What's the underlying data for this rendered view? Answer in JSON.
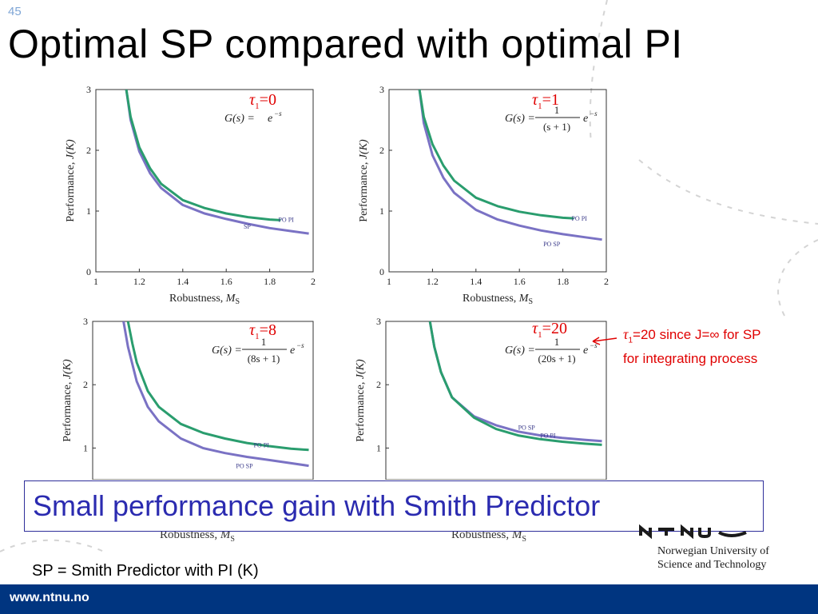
{
  "slide": {
    "number": "45",
    "title": "Optimal SP compared with optimal PI"
  },
  "colors": {
    "pi": "#2a9d6e",
    "sp": "#7a72c4",
    "accent_red": "#e00000",
    "callout_text": "#2b2bb0",
    "footer_bar": "#003580"
  },
  "chart_data": [
    {
      "type": "line",
      "tau_label": {
        "symbol": "τ",
        "sub": "1",
        "value": "=0"
      },
      "plant": {
        "lhs": "G(s) = ",
        "num": "",
        "den": "",
        "exp": "e",
        "exp_sup": "−s"
      },
      "xlabel": "Robustness, ",
      "xlabel_var": "M",
      "xlabel_sub": "S",
      "ylabel": "Performance, ",
      "ylabel_var": "J(K)",
      "xlim": [
        1,
        2
      ],
      "ylim": [
        0,
        3
      ],
      "xticks": [
        "1",
        "1.2",
        "1.4",
        "1.6",
        "1.8",
        "2"
      ],
      "yticks": [
        "0",
        "1",
        "2",
        "3"
      ],
      "series": [
        {
          "name": "PI",
          "x": [
            1.14,
            1.16,
            1.2,
            1.25,
            1.3,
            1.4,
            1.5,
            1.6,
            1.7,
            1.8,
            1.85
          ],
          "y": [
            3.0,
            2.55,
            2.05,
            1.7,
            1.45,
            1.18,
            1.05,
            0.96,
            0.9,
            0.86,
            0.85
          ]
        },
        {
          "name": "SP",
          "x": [
            1.14,
            1.16,
            1.2,
            1.25,
            1.3,
            1.4,
            1.5,
            1.6,
            1.7,
            1.8,
            1.9,
            1.98
          ],
          "y": [
            3.0,
            2.5,
            1.98,
            1.62,
            1.38,
            1.1,
            0.96,
            0.87,
            0.79,
            0.72,
            0.67,
            0.63
          ]
        }
      ],
      "annotations": [
        {
          "text": "PO PI",
          "x": 1.84,
          "y": 0.86
        },
        {
          "text": "SP",
          "x": 1.68,
          "y": 0.75
        }
      ]
    },
    {
      "type": "line",
      "tau_label": {
        "symbol": "τ",
        "sub": "1",
        "value": "=1"
      },
      "plant": {
        "lhs": "G(s) = ",
        "num": "1",
        "den": "(s + 1)",
        "exp": "e",
        "exp_sup": "−s"
      },
      "xlabel": "Robustness, ",
      "xlabel_var": "M",
      "xlabel_sub": "S",
      "ylabel": "Performance, ",
      "ylabel_var": "J(K)",
      "xlim": [
        1,
        2
      ],
      "ylim": [
        0,
        3
      ],
      "xticks": [
        "1",
        "1.2",
        "1.4",
        "1.6",
        "1.8",
        "2"
      ],
      "yticks": [
        "0",
        "1",
        "2",
        "3"
      ],
      "series": [
        {
          "name": "PI",
          "x": [
            1.14,
            1.16,
            1.2,
            1.25,
            1.3,
            1.4,
            1.5,
            1.6,
            1.7,
            1.8,
            1.85
          ],
          "y": [
            3.0,
            2.55,
            2.1,
            1.75,
            1.5,
            1.22,
            1.08,
            0.99,
            0.93,
            0.89,
            0.88
          ]
        },
        {
          "name": "SP",
          "x": [
            1.14,
            1.16,
            1.2,
            1.25,
            1.3,
            1.4,
            1.5,
            1.6,
            1.7,
            1.8,
            1.9,
            1.98
          ],
          "y": [
            3.0,
            2.45,
            1.92,
            1.55,
            1.3,
            1.02,
            0.86,
            0.76,
            0.68,
            0.62,
            0.57,
            0.53
          ]
        }
      ],
      "annotations": [
        {
          "text": "PO PI",
          "x": 1.84,
          "y": 0.88
        },
        {
          "text": "PO SP",
          "x": 1.71,
          "y": 0.46
        }
      ]
    },
    {
      "type": "line",
      "tau_label": {
        "symbol": "τ",
        "sub": "1",
        "value": "=8"
      },
      "plant": {
        "lhs": "G(s) = ",
        "num": "1",
        "den": "(8s + 1)",
        "exp": "e",
        "exp_sup": "−s"
      },
      "xlabel": "",
      "xlabel_var": "",
      "xlabel_sub": "",
      "ylabel": "Performance, ",
      "ylabel_var": "J(K)",
      "xlim": [
        1,
        2
      ],
      "ylim": [
        0.5,
        3
      ],
      "xticks": [],
      "yticks": [
        "1",
        "2",
        "3"
      ],
      "series": [
        {
          "name": "PI",
          "x": [
            1.16,
            1.18,
            1.2,
            1.25,
            1.3,
            1.4,
            1.5,
            1.6,
            1.7,
            1.8,
            1.9,
            1.98
          ],
          "y": [
            3.0,
            2.65,
            2.35,
            1.9,
            1.65,
            1.38,
            1.24,
            1.15,
            1.08,
            1.03,
            0.99,
            0.97
          ]
        },
        {
          "name": "SP",
          "x": [
            1.14,
            1.16,
            1.2,
            1.25,
            1.3,
            1.4,
            1.5,
            1.6,
            1.7,
            1.8,
            1.9,
            1.98
          ],
          "y": [
            3.0,
            2.6,
            2.05,
            1.65,
            1.42,
            1.15,
            1.0,
            0.92,
            0.86,
            0.81,
            0.76,
            0.72
          ]
        }
      ],
      "annotations": [
        {
          "text": "PO PI",
          "x": 1.73,
          "y": 1.05
        },
        {
          "text": "PO SP",
          "x": 1.65,
          "y": 0.72
        }
      ]
    },
    {
      "type": "line",
      "tau_label": {
        "symbol": "τ",
        "sub": "1",
        "value": "=20"
      },
      "plant": {
        "lhs": "G(s) = ",
        "num": "1",
        "den": "(20s + 1)",
        "exp": "e",
        "exp_sup": "−s"
      },
      "xlabel": "",
      "xlabel_var": "",
      "xlabel_sub": "",
      "ylabel": "Performance, ",
      "ylabel_var": "J(K)",
      "xlim": [
        1,
        2
      ],
      "ylim": [
        0.5,
        3
      ],
      "xticks": [],
      "yticks": [
        "1",
        "2",
        "3"
      ],
      "series": [
        {
          "name": "PI",
          "x": [
            1.2,
            1.22,
            1.25,
            1.3,
            1.4,
            1.5,
            1.6,
            1.7,
            1.8,
            1.9,
            1.98
          ],
          "y": [
            3.0,
            2.6,
            2.2,
            1.8,
            1.48,
            1.3,
            1.2,
            1.14,
            1.1,
            1.07,
            1.05
          ]
        },
        {
          "name": "SP",
          "x": [
            1.2,
            1.22,
            1.25,
            1.3,
            1.4,
            1.5,
            1.6,
            1.7,
            1.8,
            1.9,
            1.98
          ],
          "y": [
            3.0,
            2.6,
            2.2,
            1.8,
            1.5,
            1.36,
            1.26,
            1.2,
            1.16,
            1.13,
            1.11
          ]
        }
      ],
      "annotations": [
        {
          "text": "PO SP",
          "x": 1.6,
          "y": 1.33
        },
        {
          "text": "PO PI",
          "x": 1.7,
          "y": 1.2
        }
      ]
    }
  ],
  "side_note": {
    "symbol": "τ",
    "sub": "1",
    "line1": "=20 since J=∞ for SP",
    "line2": "for integrating process"
  },
  "callout": {
    "text": "Small performance gain with Smith Predictor"
  },
  "hidden_xlabel": {
    "text": "Robustness, ",
    "var": "M",
    "sub": "S"
  },
  "footer": {
    "note": "SP = Smith Predictor with PI (K)",
    "url": "www.ntnu.no",
    "university_line1": "Norwegian University of",
    "university_line2": "Science and Technology"
  }
}
